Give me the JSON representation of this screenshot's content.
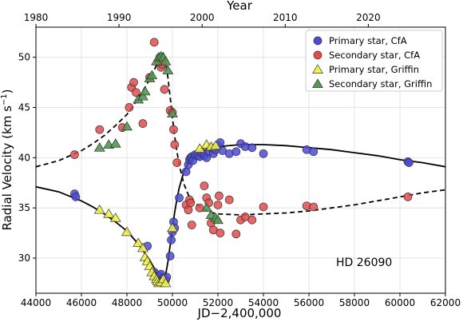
{
  "chart_data": {
    "type": "scatter",
    "title": "",
    "xlabel": "JD−2,400,000",
    "ylabel": "Radial Velocity (km s",
    "ylabel_superscript": "−1",
    "ylabel_suffix": ")",
    "top_xlabel": "Year",
    "xlim": [
      44000,
      62000
    ],
    "ylim": [
      26.5,
      53.0
    ],
    "top_xlim": [
      1980,
      2029.28
    ],
    "xticks": [
      44000,
      46000,
      48000,
      50000,
      52000,
      54000,
      56000,
      58000,
      60000,
      62000
    ],
    "yticks": [
      30,
      35,
      40,
      45,
      50
    ],
    "top_xticks": [
      1980,
      1990,
      2000,
      2010,
      2020
    ],
    "grid": true,
    "legend_position": "top-right",
    "annotation": "HD 26090",
    "colors": {
      "primary_cfa": "#4a4ae0",
      "secondary_cfa": "#e84a4a",
      "primary_griffin": "#f2f240",
      "secondary_griffin": "#4f9a4f"
    },
    "series": [
      {
        "name": "Primary star, CfA",
        "marker": "circle",
        "color": "#4a4ae0",
        "x": [
          45700,
          45750,
          48900,
          49200,
          49300,
          49350,
          49400,
          49450,
          49500,
          49600,
          49700,
          49750,
          49900,
          49950,
          50000,
          50050,
          50100,
          50300,
          50600,
          50700,
          50750,
          50800,
          50850,
          50900,
          51000,
          51100,
          51200,
          51300,
          51400,
          51500,
          51600,
          51700,
          51800,
          51900,
          52000,
          52100,
          52200,
          52500,
          52800,
          53000,
          53200,
          53500,
          54000,
          55900,
          56200,
          60350,
          60400
        ],
        "y": [
          36.4,
          36.1,
          31.2,
          28.6,
          28.1,
          28.0,
          27.9,
          28.2,
          28.4,
          28.0,
          27.8,
          28.1,
          30.2,
          31.8,
          32.6,
          33.6,
          33.0,
          36.0,
          38.6,
          39.3,
          39.8,
          40.0,
          40.1,
          39.7,
          40.3,
          40.2,
          40.1,
          40.5,
          40.2,
          40.0,
          40.6,
          41.0,
          40.4,
          40.8,
          41.2,
          41.5,
          40.7,
          40.4,
          40.6,
          41.4,
          41.1,
          41.0,
          40.4,
          40.8,
          40.6,
          39.6,
          39.5
        ]
      },
      {
        "name": "Secondary star, CfA",
        "marker": "circle",
        "color": "#e84a4a",
        "x": [
          45700,
          46800,
          47800,
          48100,
          48200,
          48300,
          48400,
          48700,
          49000,
          49200,
          49400,
          49450,
          49500,
          49550,
          49650,
          49900,
          50000,
          50050,
          50100,
          50200,
          50600,
          50700,
          50750,
          50800,
          50850,
          51200,
          51400,
          51500,
          51600,
          51700,
          51800,
          52000,
          52050,
          52100,
          52500,
          52800,
          53000,
          53200,
          53500,
          54000,
          55900,
          56200,
          60350
        ],
        "y": [
          40.3,
          42.8,
          43.0,
          45.0,
          47.0,
          47.5,
          46.5,
          43.4,
          48.0,
          51.5,
          49.6,
          50.0,
          49.0,
          49.3,
          46.8,
          44.7,
          44.5,
          42.8,
          41.3,
          39.5,
          35.3,
          34.8,
          35.8,
          35.5,
          33.3,
          35.0,
          37.2,
          36.0,
          35.5,
          33.5,
          32.8,
          35.3,
          36.2,
          32.5,
          35.8,
          32.4,
          33.8,
          34.1,
          33.8,
          35.1,
          35.2,
          35.1,
          36.1
        ]
      },
      {
        "name": "Primary star, Griffin",
        "marker": "triangle",
        "color": "#f2f240",
        "x": [
          46800,
          47200,
          47500,
          48000,
          48500,
          48700,
          48800,
          48900,
          49000,
          49100,
          49200,
          49300,
          49350,
          49400,
          49500,
          49600,
          49700,
          50000,
          51200,
          51500,
          51700,
          51900
        ],
        "y": [
          34.8,
          34.4,
          34.0,
          32.6,
          31.5,
          31.0,
          30.1,
          29.7,
          29.2,
          28.6,
          28.2,
          27.9,
          27.7,
          27.5,
          27.6,
          27.9,
          27.5,
          33.0,
          40.9,
          41.3,
          41.1,
          41.2
        ]
      },
      {
        "name": "Secondary star, Griffin",
        "marker": "triangle",
        "color": "#4f9a4f",
        "x": [
          46800,
          47200,
          47500,
          48000,
          48500,
          48700,
          48800,
          49000,
          49100,
          49300,
          49400,
          49500,
          49600,
          49700,
          49800,
          50000,
          51500,
          51700,
          51900,
          52000
        ],
        "y": [
          41.0,
          41.3,
          41.4,
          43.1,
          45.8,
          46.1,
          46.6,
          47.9,
          48.2,
          49.6,
          50.0,
          50.1,
          50.0,
          49.6,
          48.7,
          44.4,
          35.0,
          34.3,
          34.0,
          33.8
        ]
      }
    ],
    "model_curves": [
      {
        "component": "primary",
        "line_style": "solid",
        "x": [
          44000,
          45000,
          46000,
          46500,
          47000,
          47500,
          48000,
          48500,
          49000,
          49200,
          49400,
          49500,
          49600,
          49700,
          49800,
          49900,
          50000,
          50100,
          50200,
          50300,
          50500,
          50700,
          50900,
          51200,
          51600,
          52000,
          53000,
          54000,
          55000,
          56000,
          57000,
          58000,
          59000,
          60000,
          61000,
          62000
        ],
        "y": [
          37.1,
          36.6,
          35.7,
          35.1,
          34.4,
          33.6,
          32.7,
          31.4,
          29.8,
          29.0,
          28.1,
          27.7,
          27.6,
          28.3,
          29.6,
          31.3,
          33.0,
          34.6,
          35.9,
          37.0,
          38.6,
          39.5,
          40.0,
          40.5,
          40.9,
          41.1,
          41.3,
          41.3,
          41.2,
          41.0,
          40.8,
          40.5,
          40.2,
          39.8,
          39.5,
          39.1
        ]
      },
      {
        "component": "secondary",
        "line_style": "dashed",
        "x": [
          44000,
          45000,
          46000,
          46500,
          47000,
          47500,
          48000,
          48500,
          49000,
          49200,
          49400,
          49500,
          49600,
          49700,
          49800,
          49900,
          50000,
          50100,
          50200,
          50300,
          50500,
          50700,
          50900,
          51200,
          51600,
          52000,
          53000,
          54000,
          55000,
          56000,
          57000,
          58000,
          59000,
          60000,
          61000,
          62000
        ],
        "y": [
          39.1,
          39.7,
          40.7,
          41.4,
          42.2,
          43.2,
          44.3,
          45.9,
          47.8,
          48.7,
          49.8,
          50.3,
          50.4,
          49.6,
          48.0,
          46.0,
          44.0,
          42.1,
          40.6,
          39.3,
          37.4,
          36.3,
          35.7,
          35.1,
          34.6,
          34.4,
          34.3,
          34.4,
          34.5,
          34.7,
          35.0,
          35.3,
          35.7,
          36.1,
          36.5,
          36.8
        ]
      }
    ]
  }
}
